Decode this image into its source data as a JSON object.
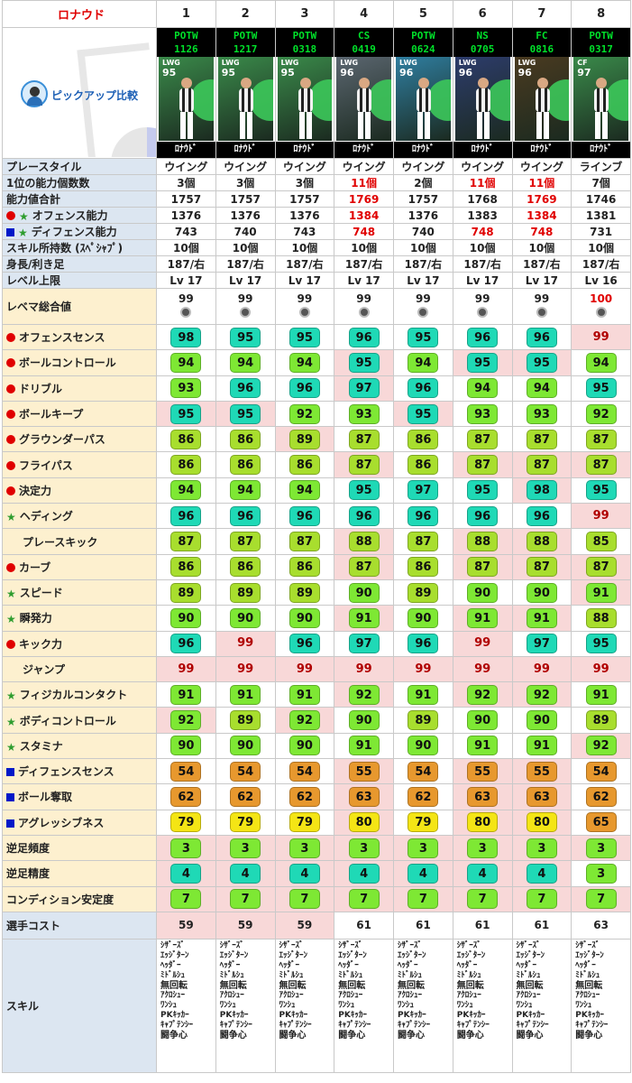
{
  "title": "ロナウド",
  "pickup_label": "ピックアップ比較",
  "columns": [
    {
      "num": "1",
      "card_line1": "POTW",
      "card_line2": "1126",
      "pos": "LWG",
      "ovr": "95",
      "name": "ﾛﾅｳﾄﾞ",
      "bg": "#3a8a4a"
    },
    {
      "num": "2",
      "card_line1": "POTW",
      "card_line2": "1217",
      "pos": "LWG",
      "ovr": "95",
      "name": "ﾛﾅｳﾄﾞ",
      "bg": "#3a8a4a"
    },
    {
      "num": "3",
      "card_line1": "POTW",
      "card_line2": "0318",
      "pos": "LWG",
      "ovr": "95",
      "name": "ﾛﾅｳﾄﾞ",
      "bg": "#3a8a4a"
    },
    {
      "num": "4",
      "card_line1": "CS",
      "card_line2": "0419",
      "pos": "LWG",
      "ovr": "96",
      "name": "ﾛﾅｳﾄﾞ",
      "bg": "#5b6670"
    },
    {
      "num": "5",
      "card_line1": "POTW",
      "card_line2": "0624",
      "pos": "LWG",
      "ovr": "96",
      "name": "ﾛﾅｳﾄﾞ",
      "bg": "#2f7ea0"
    },
    {
      "num": "6",
      "card_line1": "NS",
      "card_line2": "0705",
      "pos": "LWG",
      "ovr": "96",
      "name": "ﾛﾅｳﾄﾞ",
      "bg": "#2d3c6c"
    },
    {
      "num": "7",
      "card_line1": "FC",
      "card_line2": "0816",
      "pos": "LWG",
      "ovr": "96",
      "name": "ﾛﾅｳﾄﾞ",
      "bg": "#4a3a20"
    },
    {
      "num": "8",
      "card_line1": "POTW",
      "card_line2": "0317",
      "pos": "CF",
      "ovr": "97",
      "name": "ﾛﾅｳﾄﾞ",
      "bg": "#3a8a4a"
    }
  ],
  "info_rows": [
    {
      "label": "プレースタイル",
      "marker": "",
      "values": [
        "ウイング",
        "ウイング",
        "ウイング",
        "ウイング",
        "ウイング",
        "ウイング",
        "ウイング",
        "ラインブ"
      ],
      "red": []
    },
    {
      "label": "1位の能力個数数",
      "marker": "",
      "values": [
        "3個",
        "3個",
        "3個",
        "11個",
        "2個",
        "11個",
        "11個",
        "7個"
      ],
      "red": [
        3,
        5,
        6
      ]
    },
    {
      "label": "能力値合計",
      "marker": "",
      "values": [
        "1757",
        "1757",
        "1757",
        "1769",
        "1757",
        "1768",
        "1769",
        "1746"
      ],
      "red": [
        3,
        6
      ]
    },
    {
      "label": "オフェンス能力",
      "marker": "circle-star",
      "values": [
        "1376",
        "1376",
        "1376",
        "1384",
        "1376",
        "1383",
        "1384",
        "1381"
      ],
      "red": [
        3,
        6
      ]
    },
    {
      "label": "ディフェンス能力",
      "marker": "square-star",
      "values": [
        "743",
        "740",
        "743",
        "748",
        "740",
        "748",
        "748",
        "731"
      ],
      "red": [
        3,
        5,
        6
      ]
    },
    {
      "label": "スキル所持数 (ｽﾍﾟｼｬﾌﾟ)",
      "marker": "",
      "values": [
        "10個",
        "10個",
        "10個",
        "10個",
        "10個",
        "10個",
        "10個",
        "10個"
      ],
      "red": []
    },
    {
      "label": "身長/利き足",
      "marker": "",
      "values": [
        "187/右",
        "187/右",
        "187/右",
        "187/右",
        "187/右",
        "187/右",
        "187/右",
        "187/右"
      ],
      "red": []
    },
    {
      "label": "レベル上限",
      "marker": "",
      "values": [
        "Lv 17",
        "Lv 17",
        "Lv 17",
        "Lv 17",
        "Lv 17",
        "Lv 17",
        "Lv 17",
        "Lv 16"
      ],
      "red": []
    }
  ],
  "rebema": {
    "label": "レベマ総合値",
    "values": [
      "99",
      "99",
      "99",
      "99",
      "99",
      "99",
      "99",
      "100"
    ],
    "red": [
      7
    ]
  },
  "stat_rows": [
    {
      "label": "オフェンスセンス",
      "marker": "circle",
      "values": [
        98,
        95,
        95,
        96,
        95,
        96,
        96,
        99
      ],
      "hl": [
        7
      ]
    },
    {
      "label": "ボールコントロール",
      "marker": "circle",
      "values": [
        94,
        94,
        94,
        95,
        94,
        95,
        95,
        94
      ],
      "hl": [
        3,
        5,
        6
      ]
    },
    {
      "label": "ドリブル",
      "marker": "circle",
      "values": [
        93,
        96,
        96,
        97,
        96,
        94,
        94,
        95
      ],
      "hl": [
        3
      ]
    },
    {
      "label": "ボールキープ",
      "marker": "circle",
      "values": [
        95,
        95,
        92,
        93,
        95,
        93,
        93,
        92
      ],
      "hl": [
        0,
        1,
        4
      ]
    },
    {
      "label": "グラウンダーパス",
      "marker": "circle",
      "values": [
        86,
        86,
        89,
        87,
        86,
        87,
        87,
        87
      ],
      "hl": [
        2
      ]
    },
    {
      "label": "フライパス",
      "marker": "circle",
      "values": [
        86,
        86,
        86,
        87,
        86,
        87,
        87,
        87
      ],
      "hl": [
        3,
        5,
        6,
        7
      ]
    },
    {
      "label": "決定力",
      "marker": "circle",
      "values": [
        94,
        94,
        94,
        95,
        97,
        95,
        98,
        95
      ],
      "hl": [
        6
      ]
    },
    {
      "label": "ヘディング",
      "marker": "star",
      "values": [
        96,
        96,
        96,
        96,
        96,
        96,
        96,
        99
      ],
      "hl": [
        7
      ]
    },
    {
      "label": "プレースキック",
      "marker": "",
      "values": [
        87,
        87,
        87,
        88,
        87,
        88,
        88,
        85
      ],
      "hl": [
        3,
        5,
        6
      ]
    },
    {
      "label": "カーブ",
      "marker": "circle",
      "values": [
        86,
        86,
        86,
        87,
        86,
        87,
        87,
        87
      ],
      "hl": [
        3,
        5,
        6,
        7
      ]
    },
    {
      "label": "スピード",
      "marker": "star",
      "values": [
        89,
        89,
        89,
        90,
        89,
        90,
        90,
        91
      ],
      "hl": [
        7
      ]
    },
    {
      "label": "瞬発力",
      "marker": "star",
      "values": [
        90,
        90,
        90,
        91,
        90,
        91,
        91,
        88
      ],
      "hl": [
        3,
        5,
        6
      ]
    },
    {
      "label": "キック力",
      "marker": "circle",
      "values": [
        96,
        99,
        96,
        97,
        96,
        99,
        97,
        95
      ],
      "hl": [
        1,
        5
      ]
    },
    {
      "label": "ジャンプ",
      "marker": "",
      "values": [
        99,
        99,
        99,
        99,
        99,
        99,
        99,
        99
      ],
      "hl": [
        0,
        1,
        2,
        3,
        4,
        5,
        6,
        7
      ]
    },
    {
      "label": "フィジカルコンタクト",
      "marker": "star",
      "values": [
        91,
        91,
        91,
        92,
        91,
        92,
        92,
        91
      ],
      "hl": [
        3,
        5,
        6
      ]
    },
    {
      "label": "ボディコントロール",
      "marker": "star",
      "values": [
        92,
        89,
        92,
        90,
        89,
        90,
        90,
        89
      ],
      "hl": [
        0,
        2
      ]
    },
    {
      "label": "スタミナ",
      "marker": "star",
      "values": [
        90,
        90,
        90,
        91,
        90,
        91,
        91,
        92
      ],
      "hl": [
        7
      ]
    },
    {
      "label": "ディフェンスセンス",
      "marker": "square",
      "values": [
        54,
        54,
        54,
        55,
        54,
        55,
        55,
        54
      ],
      "hl": [
        3,
        5,
        6
      ]
    },
    {
      "label": "ボール奪取",
      "marker": "square",
      "values": [
        62,
        62,
        62,
        63,
        62,
        63,
        63,
        62
      ],
      "hl": [
        3,
        5,
        6
      ]
    },
    {
      "label": "アグレッシブネス",
      "marker": "square",
      "values": [
        79,
        79,
        79,
        80,
        79,
        80,
        80,
        65
      ],
      "hl": [
        3,
        5,
        6
      ]
    }
  ],
  "foot_rows": [
    {
      "label": "逆足頻度",
      "values": [
        3,
        3,
        3,
        3,
        3,
        3,
        3,
        3
      ],
      "hl": [
        0,
        1,
        2,
        3,
        4,
        5,
        6,
        7
      ]
    },
    {
      "label": "逆足精度",
      "values": [
        4,
        4,
        4,
        4,
        4,
        4,
        4,
        3
      ],
      "hl": [
        0,
        1,
        2,
        3,
        4,
        5,
        6
      ]
    },
    {
      "label": "コンディション安定度",
      "values": [
        7,
        7,
        7,
        7,
        7,
        7,
        7,
        7
      ],
      "hl": [
        0,
        1,
        2,
        3,
        4,
        5,
        6,
        7
      ]
    }
  ],
  "cost": {
    "label": "選手コスト",
    "values": [
      "59",
      "59",
      "59",
      "61",
      "61",
      "61",
      "61",
      "63"
    ],
    "hl": [
      0,
      1,
      2
    ]
  },
  "skills": {
    "label": "スキル",
    "lists": [
      [
        "ｼｻﾞｰｽﾞ",
        "ｴｯｼﾞﾀｰﾝ",
        "ﾍｯﾀﾞｰ",
        "ﾐﾄﾞﾙｼｭ",
        "無回転",
        "ｱｸﾛｼｭｰ",
        "ﾜﾝｼｭ",
        "PKｷｯｶｰ",
        "ｷｬﾌﾟﾃﾝｼｰ",
        "闘争心"
      ],
      [
        "ｼｻﾞｰｽﾞ",
        "ｴｯｼﾞﾀｰﾝ",
        "ﾍｯﾀﾞｰ",
        "ﾐﾄﾞﾙｼｭ",
        "無回転",
        "ｱｸﾛｼｭｰ",
        "ﾜﾝｼｭ",
        "PKｷｯｶｰ",
        "ｷｬﾌﾟﾃﾝｼｰ",
        "闘争心"
      ],
      [
        "ｼｻﾞｰｽﾞ",
        "ｴｯｼﾞﾀｰﾝ",
        "ﾍｯﾀﾞｰ",
        "ﾐﾄﾞﾙｼｭ",
        "無回転",
        "ｱｸﾛｼｭｰ",
        "ﾜﾝｼｭ",
        "PKｷｯｶｰ",
        "ｷｬﾌﾟﾃﾝｼｰ",
        "闘争心"
      ],
      [
        "ｼｻﾞｰｽﾞ",
        "ｴｯｼﾞﾀｰﾝ",
        "ﾍｯﾀﾞｰ",
        "ﾐﾄﾞﾙｼｭ",
        "無回転",
        "ｱｸﾛｼｭｰ",
        "ﾜﾝｼｭ",
        "PKｷｯｶｰ",
        "ｷｬﾌﾟﾃﾝｼｰ",
        "闘争心"
      ],
      [
        "ｼｻﾞｰｽﾞ",
        "ｴｯｼﾞﾀｰﾝ",
        "ﾍｯﾀﾞｰ",
        "ﾐﾄﾞﾙｼｭ",
        "無回転",
        "ｱｸﾛｼｭｰ",
        "ﾜﾝｼｭ",
        "PKｷｯｶｰ",
        "ｷｬﾌﾟﾃﾝｼｰ",
        "闘争心"
      ],
      [
        "ｼｻﾞｰｽﾞ",
        "ｴｯｼﾞﾀｰﾝ",
        "ﾍｯﾀﾞｰ",
        "ﾐﾄﾞﾙｼｭ",
        "無回転",
        "ｱｸﾛｼｭｰ",
        "ﾜﾝｼｭ",
        "PKｷｯｶｰ",
        "ｷｬﾌﾟﾃﾝｼｰ",
        "闘争心"
      ],
      [
        "ｼｻﾞｰｽﾞ",
        "ｴｯｼﾞﾀｰﾝ",
        "ﾍｯﾀﾞｰ",
        "ﾐﾄﾞﾙｼｭ",
        "無回転",
        "ｱｸﾛｼｭｰ",
        "ﾜﾝｼｭ",
        "PKｷｯｶｰ",
        "ｷｬﾌﾟﾃﾝｼｰ",
        "闘争心"
      ],
      [
        "ｼｻﾞｰｽﾞ",
        "ｴｯｼﾞﾀｰﾝ",
        "ﾍｯﾀﾞｰ",
        "ﾐﾄﾞﾙｼｭ",
        "無回転",
        "ｱｸﾛｼｭｰ",
        "ﾜﾝｼｭ",
        "PKｷｯｶｰ",
        "ｷｬﾌﾟﾃﾝｼｰ",
        "闘争心"
      ]
    ]
  },
  "colors": {
    "highlight": "#f8d8d8",
    "red_text": "#e00000",
    "label_bg": "#dce6f1",
    "stat_label_bg": "#fdf0cf"
  }
}
